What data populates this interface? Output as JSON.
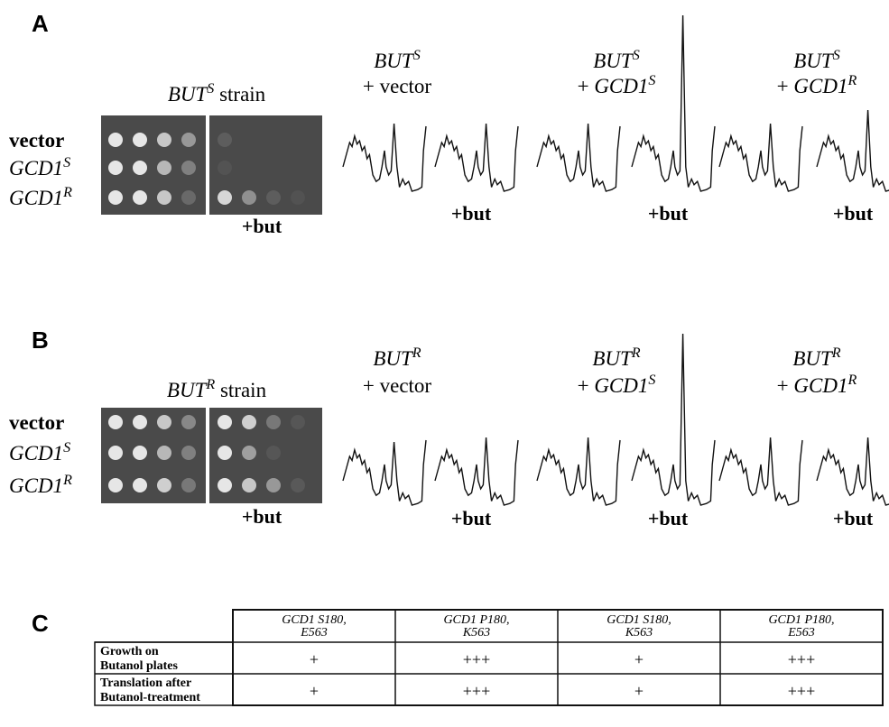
{
  "panels": [
    {
      "label": "A",
      "plate": {
        "title": {
          "gene": "BUT",
          "sup": "S",
          "suffix": " strain"
        },
        "rows": [
          {
            "text": "vector"
          },
          {
            "gene": "GCD1",
            "sup": "S"
          },
          {
            "gene": "GCD1",
            "sup": "R"
          }
        ],
        "treatment": "+but"
      },
      "profiles": [
        {
          "strain": {
            "gene": "BUT",
            "sup": "S"
          },
          "construct": {
            "text": "+ vector"
          },
          "treatment": "+but"
        },
        {
          "strain": {
            "gene": "BUT",
            "sup": "S"
          },
          "construct": {
            "prefix": "+ ",
            "gene": "GCD1",
            "sup": "S"
          },
          "treatment": "+but"
        },
        {
          "strain": {
            "gene": "BUT",
            "sup": "S"
          },
          "construct": {
            "prefix": "+ ",
            "gene": "GCD1",
            "sup": "R"
          },
          "treatment": "+but"
        }
      ]
    },
    {
      "label": "B",
      "plate": {
        "title": {
          "gene": "BUT",
          "sup": "R",
          "suffix": " strain"
        },
        "rows": [
          {
            "text": "vector"
          },
          {
            "gene": "GCD1",
            "sup": "S"
          },
          {
            "gene": "GCD1",
            "sup": "R"
          }
        ],
        "treatment": "+but"
      },
      "profiles": [
        {
          "strain": {
            "gene": "BUT",
            "sup": "R"
          },
          "construct": {
            "text": "+ vector"
          },
          "treatment": "+but"
        },
        {
          "strain": {
            "gene": "BUT",
            "sup": "R"
          },
          "construct": {
            "prefix": "+ ",
            "gene": "GCD1",
            "sup": "S"
          },
          "treatment": "+but"
        },
        {
          "strain": {
            "gene": "BUT",
            "sup": "R"
          },
          "construct": {
            "prefix": "+ ",
            "gene": "GCD1",
            "sup": "R"
          },
          "treatment": "+but"
        }
      ]
    }
  ],
  "table": {
    "label": "C",
    "columns": [
      [
        "GCD1 S180,",
        "E563"
      ],
      [
        "GCD1 P180,",
        "K563"
      ],
      [
        "GCD1 S180,",
        "K563"
      ],
      [
        "GCD1 P180,",
        "E563"
      ]
    ],
    "rows": [
      {
        "header": [
          "Growth on",
          "Butanol plates"
        ],
        "cells": [
          "+",
          "+++",
          "+",
          "+++"
        ]
      },
      {
        "header": [
          "Translation after",
          "Butanol-treatment"
        ],
        "cells": [
          "+",
          "+++",
          "+",
          "+++"
        ]
      }
    ]
  }
}
